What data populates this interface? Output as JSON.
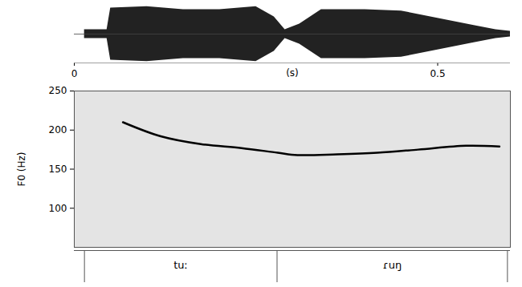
{
  "chart_data": {
    "type": "line",
    "x_label": "(s)",
    "y_label": "F0 (Hz)",
    "xlim": [
      0,
      0.6
    ],
    "xticks": [
      0,
      0.5
    ],
    "ylim": [
      50,
      250
    ],
    "yticks": [
      100,
      150,
      200,
      250
    ],
    "color": "#000000",
    "x": [
      0.067,
      0.119,
      0.174,
      0.23,
      0.28,
      0.307,
      0.362,
      0.417,
      0.473,
      0.539,
      0.585
    ],
    "values": [
      210,
      192,
      182,
      177,
      171,
      168,
      169,
      171,
      175,
      180,
      179
    ],
    "waveform": {
      "x": [
        0.014,
        0.045,
        0.05,
        0.1,
        0.15,
        0.2,
        0.25,
        0.275,
        0.29,
        0.31,
        0.34,
        0.4,
        0.45,
        0.5,
        0.55,
        0.58,
        0.6
      ],
      "amplitude": [
        0.15,
        0.15,
        0.9,
        0.95,
        0.85,
        0.85,
        0.95,
        0.6,
        0.15,
        0.35,
        0.85,
        0.85,
        0.8,
        0.55,
        0.3,
        0.15,
        0.1
      ]
    },
    "segments": [
      {
        "label": "tuː",
        "start": 0.014,
        "end": 0.279
      },
      {
        "label": "ɾuŋ",
        "start": 0.279,
        "end": 0.596
      }
    ]
  }
}
